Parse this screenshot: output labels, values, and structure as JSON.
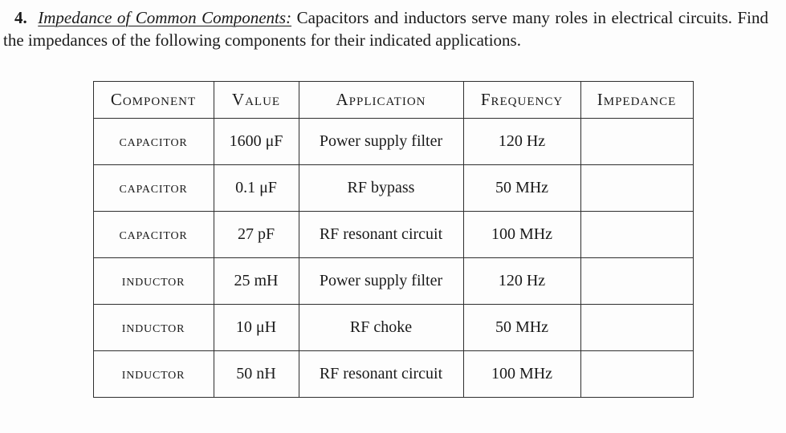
{
  "problem": {
    "number": "4.",
    "title": "Impedance of Common Components:",
    "body": "Capacitors and inductors serve many roles in electrical circuits. Find the impedances of the following components for their indicated applications."
  },
  "table": {
    "headers": [
      "Component",
      "Value",
      "Application",
      "Frequency",
      "Impedance"
    ],
    "rows": [
      {
        "component": "capacitor",
        "value": "1600 μF",
        "application": "Power supply filter",
        "frequency": "120 Hz",
        "impedance": ""
      },
      {
        "component": "capacitor",
        "value": "0.1 μF",
        "application": "RF bypass",
        "frequency": "50 MHz",
        "impedance": ""
      },
      {
        "component": "capacitor",
        "value": "27 pF",
        "application": "RF resonant circuit",
        "frequency": "100 MHz",
        "impedance": ""
      },
      {
        "component": "inductor",
        "value": "25 mH",
        "application": "Power supply filter",
        "frequency": "120 Hz",
        "impedance": ""
      },
      {
        "component": "inductor",
        "value": "10 μH",
        "application": "RF choke",
        "frequency": "50 MHz",
        "impedance": ""
      },
      {
        "component": "inductor",
        "value": "50 nH",
        "application": "RF resonant circuit",
        "frequency": "100 MHz",
        "impedance": ""
      }
    ]
  }
}
